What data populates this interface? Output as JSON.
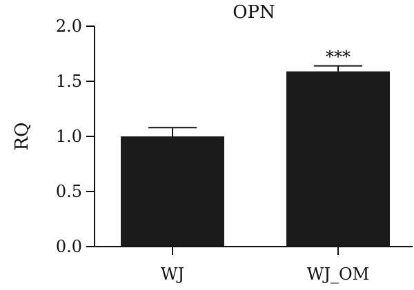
{
  "chart_data": {
    "type": "bar",
    "title": "OPN",
    "xlabel": "",
    "ylabel": "RQ",
    "categories": [
      "WJ",
      "WJ_OM"
    ],
    "values": [
      1.0,
      1.59
    ],
    "error": [
      0.08,
      0.05
    ],
    "annotations": [
      "",
      "***"
    ],
    "ylim": [
      0,
      2.0
    ],
    "yticks": [
      0.0,
      0.5,
      1.0,
      1.5,
      2.0
    ],
    "ytick_labels": [
      "0.0",
      "0.5",
      "1.0",
      "1.5",
      "2.0"
    ],
    "grid": false,
    "bar_color": "#1a1a1a",
    "axis_color": "#111111"
  }
}
